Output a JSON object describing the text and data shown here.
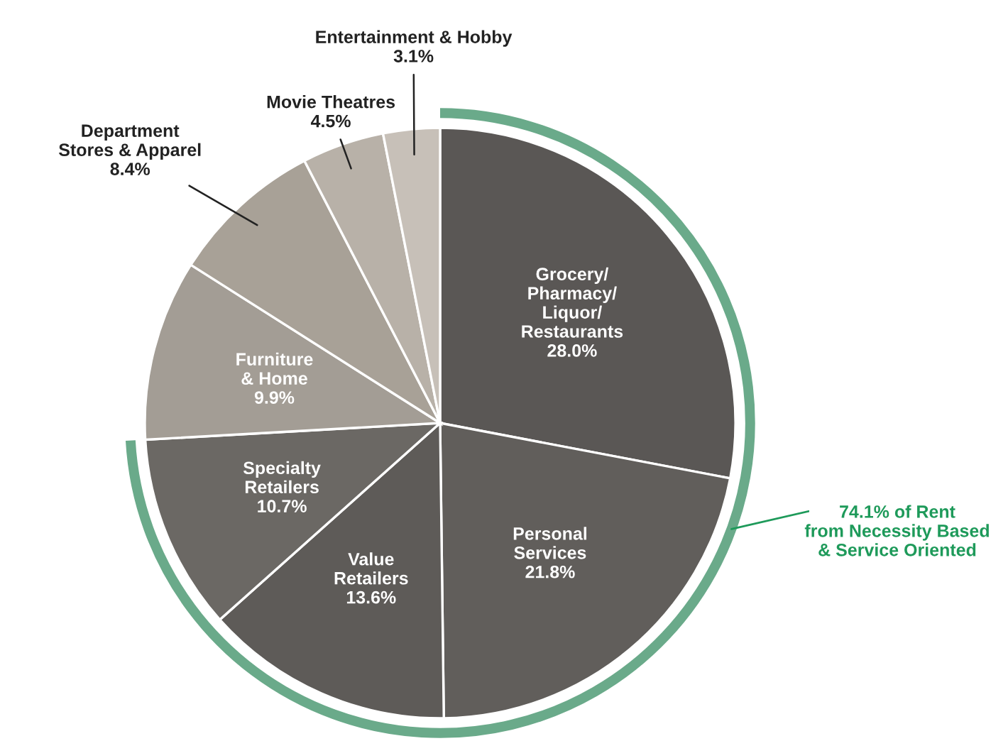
{
  "chart_data": {
    "type": "pie",
    "categories": [
      "Grocery/\nPharmacy/\nLiquor/\nRestaurants",
      "Personal\nServices",
      "Value\nRetailers",
      "Specialty\nRetailers",
      "Furniture\n& Home",
      "Department\nStores & Apparel",
      "Movie Theatres",
      "Entertainment & Hobby"
    ],
    "values": [
      28.0,
      21.8,
      13.6,
      10.7,
      9.9,
      8.4,
      4.5,
      3.1
    ],
    "value_labels": [
      "28.0%",
      "21.8%",
      "13.6%",
      "10.7%",
      "9.9%",
      "8.4%",
      "4.5%",
      "3.1%"
    ],
    "colors": [
      "#5a5755",
      "#615e5b",
      "#5e5b58",
      "#6b6864",
      "#a39d95",
      "#a8a197",
      "#b8b1a8",
      "#c7c0b8"
    ],
    "annotations": [
      "74.1% of Rent\nfrom Necessity Based\n& Service Oriented"
    ]
  }
}
